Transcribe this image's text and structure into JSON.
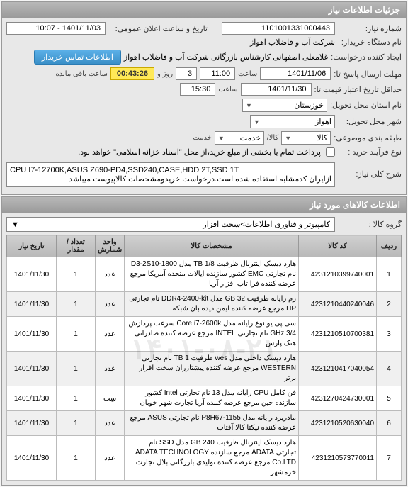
{
  "header": {
    "title": "جزئیات اطلاعات نیاز"
  },
  "info": {
    "need_number_label": "شماره نیاز:",
    "need_number": "1101001331000443",
    "announce_label": "تاریخ و ساعت اعلان عمومی:",
    "announce_value": "1401/11/03 - 10:07",
    "buyer_label": "نام دستگاه خریدار:",
    "buyer": "شرکت آب و فاضلاب اهواز",
    "creator_label": "ایجاد کننده درخواست:",
    "creator": "غلامعلی اصفهانی کارشناس بازرگانی شرکت آب و فاضلاب اهواز",
    "contact_btn": "اطلاعات تماس خریدار",
    "response_deadline_label": "مهلت ارسال پاسخ تا:",
    "response_date": "1401/11/06",
    "saat_label": "ساعت",
    "response_time": "11:00",
    "day_label": "روز و",
    "day_value": "3",
    "timer_label": "ساعت باقی مانده",
    "timer": "00:43:26",
    "validity_label": "حداقل تاریخ اعتبار قیمت تا:",
    "validity_date": "1401/11/30",
    "validity_time": "15:30",
    "province_label": "نام استان محل تحویل:",
    "province": "خوزستان",
    "city_label": "شهر محل تحویل:",
    "city": "اهواز",
    "package_label": "طبقه بندی موضوعی:",
    "package_goods": "کالا",
    "package_service": "خدمت",
    "offer_label": "نوع فرآیند خرید :",
    "offer_checkbox": "پرداخت تمام یا بخشی از مبلغ خرید،از محل \"اسناد خزانه اسلامی\" خواهد بود.",
    "desc_label": "شرح کلی نیاز:",
    "desc_line1": "CPU I7-12700K,ASUS Z690-PD4,SSD240,CASE,HDD 2T,SSD 1T",
    "desc_line2": "ازایران کدمشابه استفاده شده است.درخواست خریدومشخصات کالاپیوست میباشد"
  },
  "items_section": {
    "title": "اطلاعات کالاهای مورد نیاز",
    "group_label": "گروه کالا :",
    "group_value": "کامپیوتر و فناوری اطلاعات>سخت افزار"
  },
  "table": {
    "headers": {
      "row": "ردیف",
      "code": "کد کالا",
      "desc": "مشخصات کالا",
      "unit": "واحد شمارش",
      "qty": "تعداد / مقدار",
      "date": "تاریخ نیاز"
    },
    "rows": [
      {
        "n": "1",
        "code": "4231210399740001",
        "desc": "هارد دیسک اینترنال ظرفیت TB 1/8 مدل D3-2S10-1800 نام تجارتی EMC کشور سازنده ایالات متحده آمریکا مرجع عرضه کننده فرا تاب افزار آریا",
        "unit": "عدد",
        "qty": "1",
        "date": "1401/11/30"
      },
      {
        "n": "2",
        "code": "4231210440240046",
        "desc": "رم رایانه ظرفیت GB 32 مدل DDR4-2400-kit نام تجارتی HP مرجع عرضه کننده ایمن دیده بان شبکه",
        "unit": "عدد",
        "qty": "1",
        "date": "1401/11/30"
      },
      {
        "n": "3",
        "code": "4231210510700381",
        "desc": "سی پی یو نوع رایانه مدل Core i7-2600k سرعت پردازش 3/4 GHz نام تجارتی INTEL مرجع عرضه کننده صادراتی هنک پارس",
        "unit": "عدد",
        "qty": "1",
        "date": "1401/11/30"
      },
      {
        "n": "4",
        "code": "4231210417040054",
        "desc": "هارد دیسک داخلی مدل wes ظرفیت TB 1 نام تجارتی WESTERN مرجع عرضه کننده پیشتازران سخت افزار برتر",
        "unit": "عدد",
        "qty": "1",
        "date": "1401/11/30"
      },
      {
        "n": "5",
        "code": "4231270424730001",
        "desc": "فن کامل CPU رایانه مدل 13 نام تجارتی Intel کشور سازنده چین مرجع عرضه کننده آریا تجارت شهر خوبان",
        "unit": "سِت",
        "qty": "1",
        "date": "1401/11/30"
      },
      {
        "n": "6",
        "code": "4231210520630040",
        "desc": "مادربرد رایانه مدل P8H67-1155 نام تجارتی ASUS مرجع عرضه کننده نیکتا کالا آفتاب",
        "unit": "عدد",
        "qty": "1",
        "date": "1401/11/30"
      },
      {
        "n": "7",
        "code": "4231210573770011",
        "desc": "هارد دیسک اینترنال ظرفیت GB 240 مدل SSD نام تجارتی ADATA مرجع سازنده ADATA TECHNOLOGY Co.LTD مرجع عرضه کننده تولیدی بازرگانی بلال تجارت خرمشهر",
        "unit": "عدد",
        "qty": "1",
        "date": "1401/11/30"
      }
    ]
  },
  "watermark": "۱۴۰۱-۰۸-۲۱"
}
